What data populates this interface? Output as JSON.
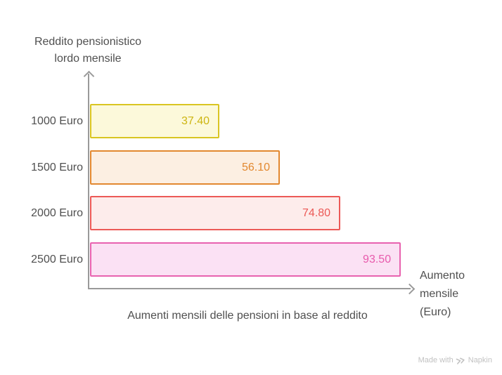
{
  "chart_data": {
    "type": "bar",
    "orientation": "horizontal",
    "title": "Aumenti mensili delle pensioni in base al reddito",
    "ylabel": "Reddito pensionistico\nlordo mensile",
    "xlabel": "Aumento\nmensile\n(Euro)",
    "categories": [
      "1000 Euro",
      "1500 Euro",
      "2000 Euro",
      "2500 Euro"
    ],
    "values": [
      37.4,
      56.1,
      74.8,
      93.5
    ],
    "value_labels": [
      "37.40",
      "56.10",
      "74.80",
      "93.50"
    ],
    "xlim": [
      0,
      100
    ],
    "grid": false,
    "legend": false,
    "axis_color": "#9A9A9A",
    "label_color": "#4F4F4F",
    "bar_colors": [
      {
        "border": "#D9C521",
        "fill": "#FCF9DA",
        "text": "#CDB511"
      },
      {
        "border": "#E2882F",
        "fill": "#FCEFE2",
        "text": "#E2882F"
      },
      {
        "border": "#EC5956",
        "fill": "#FDECEB",
        "text": "#EC5956"
      },
      {
        "border": "#E862AF",
        "fill": "#FBE1F4",
        "text": "#E85AAC"
      }
    ]
  },
  "watermark": {
    "prefix": "Made with",
    "brand": "Napkin",
    "color": "#C2C2C2"
  }
}
